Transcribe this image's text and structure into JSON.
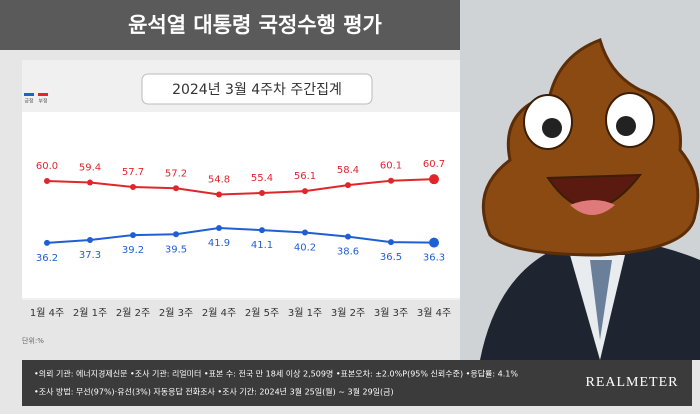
{
  "chart_data": {
    "type": "line",
    "title": "윤석열 대통령 국정수행 평가",
    "subtitle": "2024년 3월 4주차 주간집계",
    "unit": "단위:%",
    "categories": [
      "1월 4주",
      "2월 1주",
      "2월 2주",
      "2월 3주",
      "2월 4주",
      "2월 5주",
      "3월 1주",
      "3월 2주",
      "3월 3주",
      "3월 4주"
    ],
    "series": [
      {
        "name": "긍정",
        "color": "#1f5fd6",
        "values": [
          36.2,
          37.3,
          39.2,
          39.5,
          41.9,
          41.1,
          40.2,
          38.6,
          36.5,
          36.3
        ]
      },
      {
        "name": "부정",
        "color": "#e0262b",
        "values": [
          60.0,
          59.4,
          57.7,
          57.2,
          54.8,
          55.4,
          56.1,
          58.4,
          60.1,
          60.7
        ],
        "value_labels": [
          "60.0",
          "59.4",
          "57.7",
          "57.2",
          "54.8",
          "55.4",
          "56.1",
          "58.4",
          "60.1",
          "60.7"
        ]
      }
    ],
    "ylim": [
      20,
      80
    ],
    "notes": [
      "•의뢰 기관: 에너지경제신문 •조사 기관: 리얼미터 •표본 수: 전국 만 18세 이상 2,509명 •표본오차: ±2.0%P(95% 신뢰수준) •응답률: 4.1%",
      "•조사 방법: 무선(97%)·유선(3%) 자동응답 전화조사 •조사 기간: 2024년 3월 25일(월) ~ 3월 29일(금)"
    ],
    "source": "REALMETER"
  }
}
